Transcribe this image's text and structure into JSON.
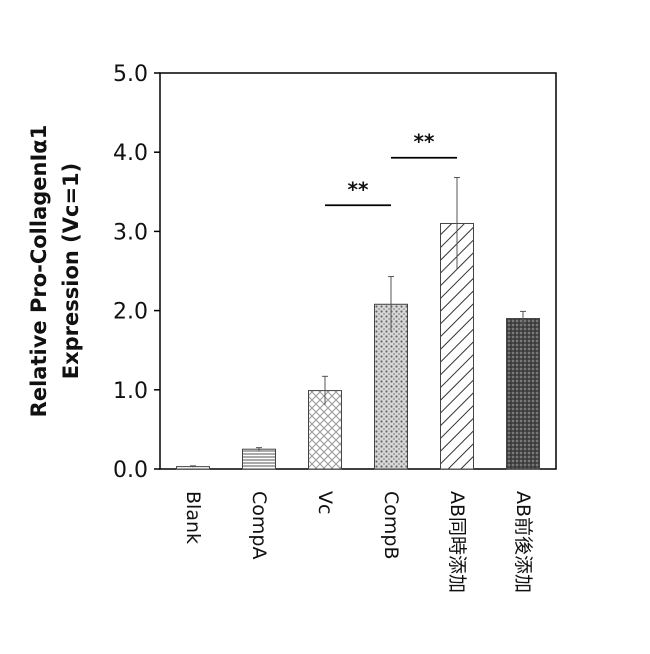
{
  "chart_data": {
    "type": "bar",
    "categories": [
      "Blank",
      "CompA",
      "Vc",
      "CompB",
      "AB同時添加",
      "AB前後添加"
    ],
    "values": [
      0.03,
      0.25,
      0.99,
      2.08,
      3.1,
      1.9
    ],
    "errors": [
      0.01,
      0.02,
      0.18,
      0.35,
      0.58,
      0.09
    ],
    "patterns": [
      "horizontal-fine",
      "horizontal-lines",
      "crosshatch-light",
      "dots-medium",
      "diagonal-lines",
      "dots-dense-dark"
    ],
    "ylabel_lines": [
      "Relative Pro-CollagenIα1",
      "Expression (Vc=1)"
    ],
    "ylim": [
      0,
      5
    ],
    "yticks": [
      "0.0",
      "1.0",
      "2.0",
      "3.0",
      "4.0",
      "5.0"
    ],
    "significance": [
      {
        "from": "Vc",
        "to": "CompB",
        "label": "**",
        "y": 3.33
      },
      {
        "from": "CompB",
        "to": "AB同時添加",
        "label": "**",
        "y": 3.93
      }
    ],
    "grid": false,
    "legend": "none"
  }
}
